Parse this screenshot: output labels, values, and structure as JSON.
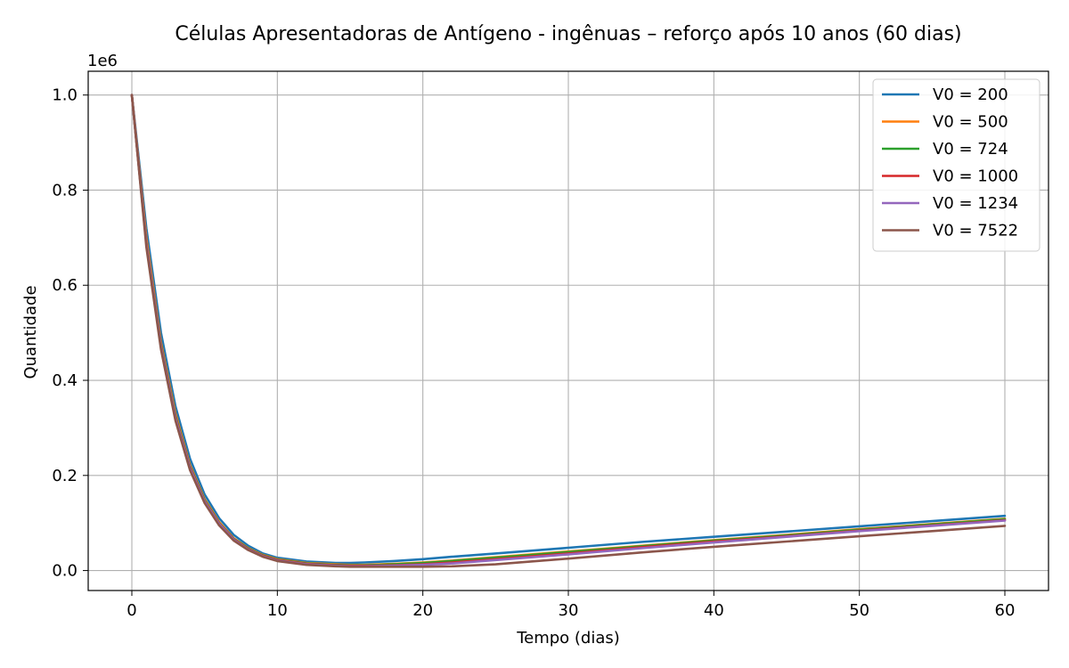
{
  "chart_data": {
    "type": "line",
    "title": "Células Apresentadoras de Antígeno - ingênuas – reforço após 10 anos (60 dias)",
    "xlabel": "Tempo (dias)",
    "ylabel": "Quantidade",
    "y_offset_text": "1e6",
    "xlim": [
      -3,
      63
    ],
    "ylim": [
      -0.042,
      1.05
    ],
    "x_ticks": [
      0,
      10,
      20,
      30,
      40,
      50,
      60
    ],
    "x_tick_labels": [
      "0",
      "10",
      "20",
      "30",
      "40",
      "50",
      "60"
    ],
    "y_ticks": [
      0.0,
      0.2,
      0.4,
      0.6,
      0.8,
      1.0
    ],
    "y_tick_labels": [
      "0.0",
      "0.2",
      "0.4",
      "0.6",
      "0.8",
      "1.0"
    ],
    "grid": true,
    "legend_position": "top-right",
    "x": [
      0,
      1,
      2,
      3,
      4,
      5,
      6,
      7,
      8,
      9,
      10,
      12,
      14,
      15,
      16,
      18,
      20,
      22,
      25,
      30,
      35,
      40,
      45,
      50,
      55,
      60
    ],
    "series": [
      {
        "name": "V0 = 200",
        "color": "#1f77b4",
        "values": [
          1.0,
          0.72,
          0.5,
          0.345,
          0.235,
          0.16,
          0.11,
          0.075,
          0.052,
          0.036,
          0.027,
          0.019,
          0.016,
          0.016,
          0.017,
          0.02,
          0.024,
          0.029,
          0.036,
          0.048,
          0.06,
          0.071,
          0.082,
          0.093,
          0.104,
          0.115
        ]
      },
      {
        "name": "V0 = 500",
        "color": "#ff7f0e",
        "values": [
          1.0,
          0.7,
          0.48,
          0.33,
          0.222,
          0.15,
          0.102,
          0.068,
          0.047,
          0.033,
          0.024,
          0.016,
          0.013,
          0.012,
          0.012,
          0.014,
          0.017,
          0.021,
          0.028,
          0.04,
          0.052,
          0.064,
          0.075,
          0.087,
          0.098,
          0.109
        ]
      },
      {
        "name": "V0 = 724",
        "color": "#2ca02c",
        "values": [
          1.0,
          0.69,
          0.475,
          0.325,
          0.219,
          0.148,
          0.1,
          0.067,
          0.046,
          0.032,
          0.023,
          0.015,
          0.012,
          0.011,
          0.011,
          0.013,
          0.016,
          0.02,
          0.027,
          0.039,
          0.051,
          0.063,
          0.074,
          0.086,
          0.097,
          0.108
        ]
      },
      {
        "name": "V0 = 1000",
        "color": "#d62728",
        "values": [
          1.0,
          0.688,
          0.472,
          0.322,
          0.217,
          0.146,
          0.099,
          0.066,
          0.045,
          0.031,
          0.022,
          0.014,
          0.011,
          0.01,
          0.01,
          0.011,
          0.013,
          0.017,
          0.024,
          0.036,
          0.049,
          0.061,
          0.072,
          0.084,
          0.095,
          0.106
        ]
      },
      {
        "name": "V0 = 1234",
        "color": "#9467bd",
        "values": [
          1.0,
          0.686,
          0.47,
          0.32,
          0.215,
          0.145,
          0.098,
          0.065,
          0.044,
          0.03,
          0.021,
          0.013,
          0.01,
          0.009,
          0.009,
          0.01,
          0.012,
          0.015,
          0.022,
          0.034,
          0.047,
          0.059,
          0.071,
          0.083,
          0.094,
          0.105
        ]
      },
      {
        "name": "V0 = 7522",
        "color": "#8c564b",
        "values": [
          1.0,
          0.68,
          0.465,
          0.315,
          0.211,
          0.142,
          0.095,
          0.063,
          0.043,
          0.029,
          0.02,
          0.012,
          0.009,
          0.008,
          0.008,
          0.008,
          0.008,
          0.009,
          0.013,
          0.025,
          0.038,
          0.05,
          0.061,
          0.072,
          0.083,
          0.094
        ]
      }
    ]
  }
}
